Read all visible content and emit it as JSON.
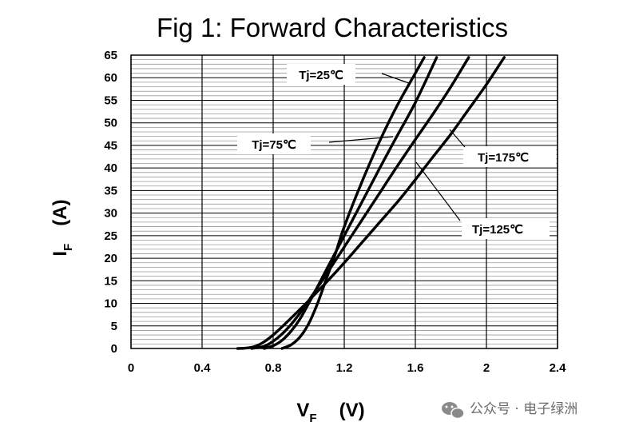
{
  "chart_data": {
    "type": "line",
    "title": "Fig 1: Forward Characteristics",
    "xlabel": {
      "main": "V",
      "sub": "F",
      "unit": "(V)"
    },
    "ylabel": {
      "main": "I",
      "sub": "F",
      "unit": "(A)"
    },
    "xlim": [
      0,
      2.4
    ],
    "ylim": [
      0,
      65
    ],
    "x_ticks": [
      "0",
      "0.4",
      "0.8",
      "1.2",
      "1.6",
      "2",
      "2.4"
    ],
    "y_ticks": [
      "0",
      "5",
      "10",
      "15",
      "20",
      "25",
      "30",
      "35",
      "40",
      "45",
      "50",
      "55",
      "60",
      "65"
    ],
    "grid": true,
    "series": [
      {
        "name": "Tj=25℃",
        "points": [
          [
            0.85,
            0
          ],
          [
            0.9,
            0.8
          ],
          [
            0.95,
            2.5
          ],
          [
            1.0,
            5.5
          ],
          [
            1.05,
            10
          ],
          [
            1.1,
            15.5
          ],
          [
            1.15,
            21
          ],
          [
            1.2,
            27
          ],
          [
            1.3,
            37
          ],
          [
            1.4,
            46
          ],
          [
            1.5,
            54
          ],
          [
            1.6,
            61
          ],
          [
            1.65,
            64.5
          ]
        ]
      },
      {
        "name": "Tj=75℃",
        "points": [
          [
            0.75,
            0
          ],
          [
            0.8,
            0.6
          ],
          [
            0.85,
            1.8
          ],
          [
            0.9,
            3.8
          ],
          [
            0.95,
            6.5
          ],
          [
            1.0,
            10
          ],
          [
            1.05,
            13.7
          ],
          [
            1.1,
            17.5
          ],
          [
            1.2,
            25
          ],
          [
            1.3,
            32.5
          ],
          [
            1.4,
            40
          ],
          [
            1.5,
            47.3
          ],
          [
            1.6,
            54.5
          ],
          [
            1.72,
            64.5
          ]
        ]
      },
      {
        "name": "Tj=125℃",
        "points": [
          [
            0.68,
            0
          ],
          [
            0.75,
            0.5
          ],
          [
            0.8,
            1.6
          ],
          [
            0.85,
            3.2
          ],
          [
            0.9,
            5.3
          ],
          [
            0.95,
            7.8
          ],
          [
            1.0,
            10.6
          ],
          [
            1.1,
            16.5
          ],
          [
            1.2,
            22.5
          ],
          [
            1.3,
            28.5
          ],
          [
            1.4,
            34.5
          ],
          [
            1.5,
            40.5
          ],
          [
            1.6,
            46.3
          ],
          [
            1.7,
            52
          ],
          [
            1.8,
            58
          ],
          [
            1.9,
            64.5
          ]
        ]
      },
      {
        "name": "Tj=175℃",
        "points": [
          [
            0.6,
            0
          ],
          [
            0.65,
            0.1
          ],
          [
            0.7,
            0.5
          ],
          [
            0.75,
            1.5
          ],
          [
            0.8,
            3.0
          ],
          [
            0.85,
            4.8
          ],
          [
            0.9,
            6.7
          ],
          [
            1.0,
            10.6
          ],
          [
            1.1,
            14.7
          ],
          [
            1.2,
            19
          ],
          [
            1.3,
            23.5
          ],
          [
            1.4,
            28
          ],
          [
            1.5,
            32.5
          ],
          [
            1.6,
            37.4
          ],
          [
            1.7,
            42.5
          ],
          [
            1.8,
            47.5
          ],
          [
            1.9,
            53
          ],
          [
            2.0,
            58.5
          ],
          [
            2.1,
            64.5
          ]
        ]
      }
    ],
    "annotations": [
      "Tj=25℃",
      "Tj=75℃",
      "Tj=125℃",
      "Tj=175℃"
    ]
  },
  "watermark": {
    "icon": "wechat-icon",
    "text": "公众号 · 电子绿洲"
  },
  "colors": {
    "line": "#000000",
    "grid": "#000000",
    "minor_grid": "#9a9a9a"
  }
}
